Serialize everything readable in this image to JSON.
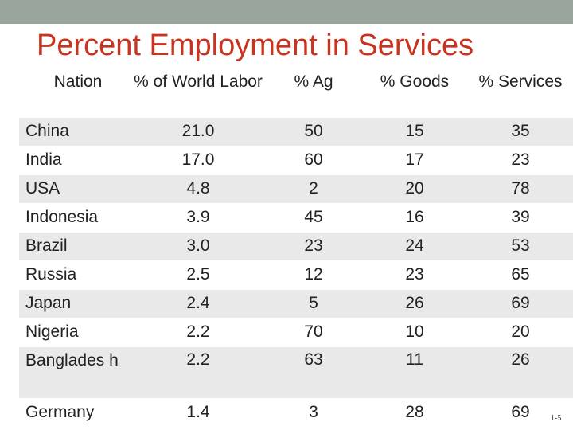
{
  "slide": {
    "title": "Percent Employment in Services",
    "slide_number": "1-5"
  },
  "table": {
    "headers": [
      "Nation",
      "% of World Labor",
      "%  Ag",
      "% Goods",
      "% Services"
    ],
    "rows": [
      {
        "nation": "China",
        "world_labor": "21.0",
        "ag": "50",
        "goods": "15",
        "services": "35"
      },
      {
        "nation": "India",
        "world_labor": "17.0",
        "ag": "60",
        "goods": "17",
        "services": "23"
      },
      {
        "nation": "USA",
        "world_labor": "4.8",
        "ag": "2",
        "goods": "20",
        "services": "78"
      },
      {
        "nation": "Indonesia",
        "world_labor": "3.9",
        "ag": "45",
        "goods": "16",
        "services": "39"
      },
      {
        "nation": "Brazil",
        "world_labor": "3.0",
        "ag": "23",
        "goods": "24",
        "services": "53"
      },
      {
        "nation": "Russia",
        "world_labor": "2.5",
        "ag": "12",
        "goods": "23",
        "services": "65"
      },
      {
        "nation": "Japan",
        "world_labor": "2.4",
        "ag": "5",
        "goods": "26",
        "services": "69"
      },
      {
        "nation": "Nigeria",
        "world_labor": "2.2",
        "ag": "70",
        "goods": "10",
        "services": "20"
      },
      {
        "nation": "Banglades h",
        "world_labor": "2.2",
        "ag": "63",
        "goods": "11",
        "services": "26"
      },
      {
        "nation": "Germany",
        "world_labor": "1.4",
        "ag": "3",
        "goods": "28",
        "services": "69"
      }
    ]
  }
}
